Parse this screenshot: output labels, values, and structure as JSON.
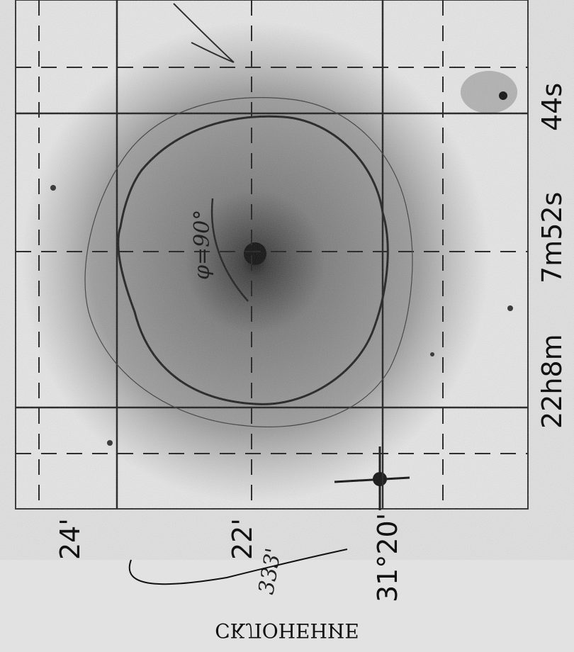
{
  "dec_ticks": [
    "24'",
    "22'",
    "31°20'"
  ],
  "ra_ticks": [
    "22h8m",
    "7m52s",
    "44s"
  ],
  "axis_title": "СКЛОНЕНИЕ",
  "annotations": [
    "φ=90°",
    "333'"
  ]
}
